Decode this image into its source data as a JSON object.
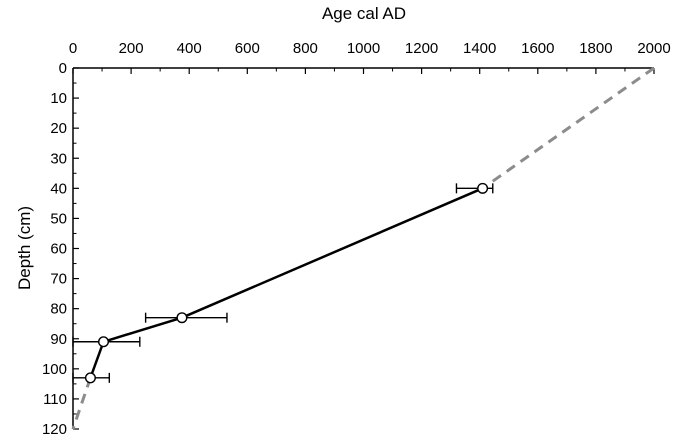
{
  "chart_data": {
    "type": "line",
    "xlabel": "Age cal AD",
    "ylabel": "Depth (cm)",
    "xlim": [
      0,
      2000
    ],
    "ylim": [
      0,
      120
    ],
    "y_inverted": true,
    "x_axis_position": "top",
    "x_ticks": [
      0,
      200,
      400,
      600,
      800,
      1000,
      1200,
      1400,
      1600,
      1800,
      2000
    ],
    "y_ticks": [
      0,
      10,
      20,
      30,
      40,
      50,
      60,
      70,
      80,
      90,
      100,
      110,
      120
    ],
    "grid": false,
    "legend": "none",
    "series": [
      {
        "style": "solid",
        "color": "#000000",
        "markers": "open-circle",
        "points": [
          {
            "age": 1410,
            "depth": 40,
            "err_low": 1320,
            "err_high": 1445
          },
          {
            "age": 375,
            "depth": 83,
            "err_low": 250,
            "err_high": 530
          },
          {
            "age": 105,
            "depth": 91,
            "err_low": 0,
            "err_high": 230
          },
          {
            "age": 60,
            "depth": 103,
            "err_low": 0,
            "err_high": 125
          }
        ]
      },
      {
        "style": "dashed",
        "color": "#8c8c8c",
        "points": [
          {
            "age": 2000,
            "depth": 0
          },
          {
            "age": 1410,
            "depth": 40
          }
        ]
      },
      {
        "style": "dashed",
        "color": "#8c8c8c",
        "points": [
          {
            "age": 60,
            "depth": 103
          },
          {
            "age": 0,
            "depth": 120
          }
        ]
      }
    ]
  }
}
